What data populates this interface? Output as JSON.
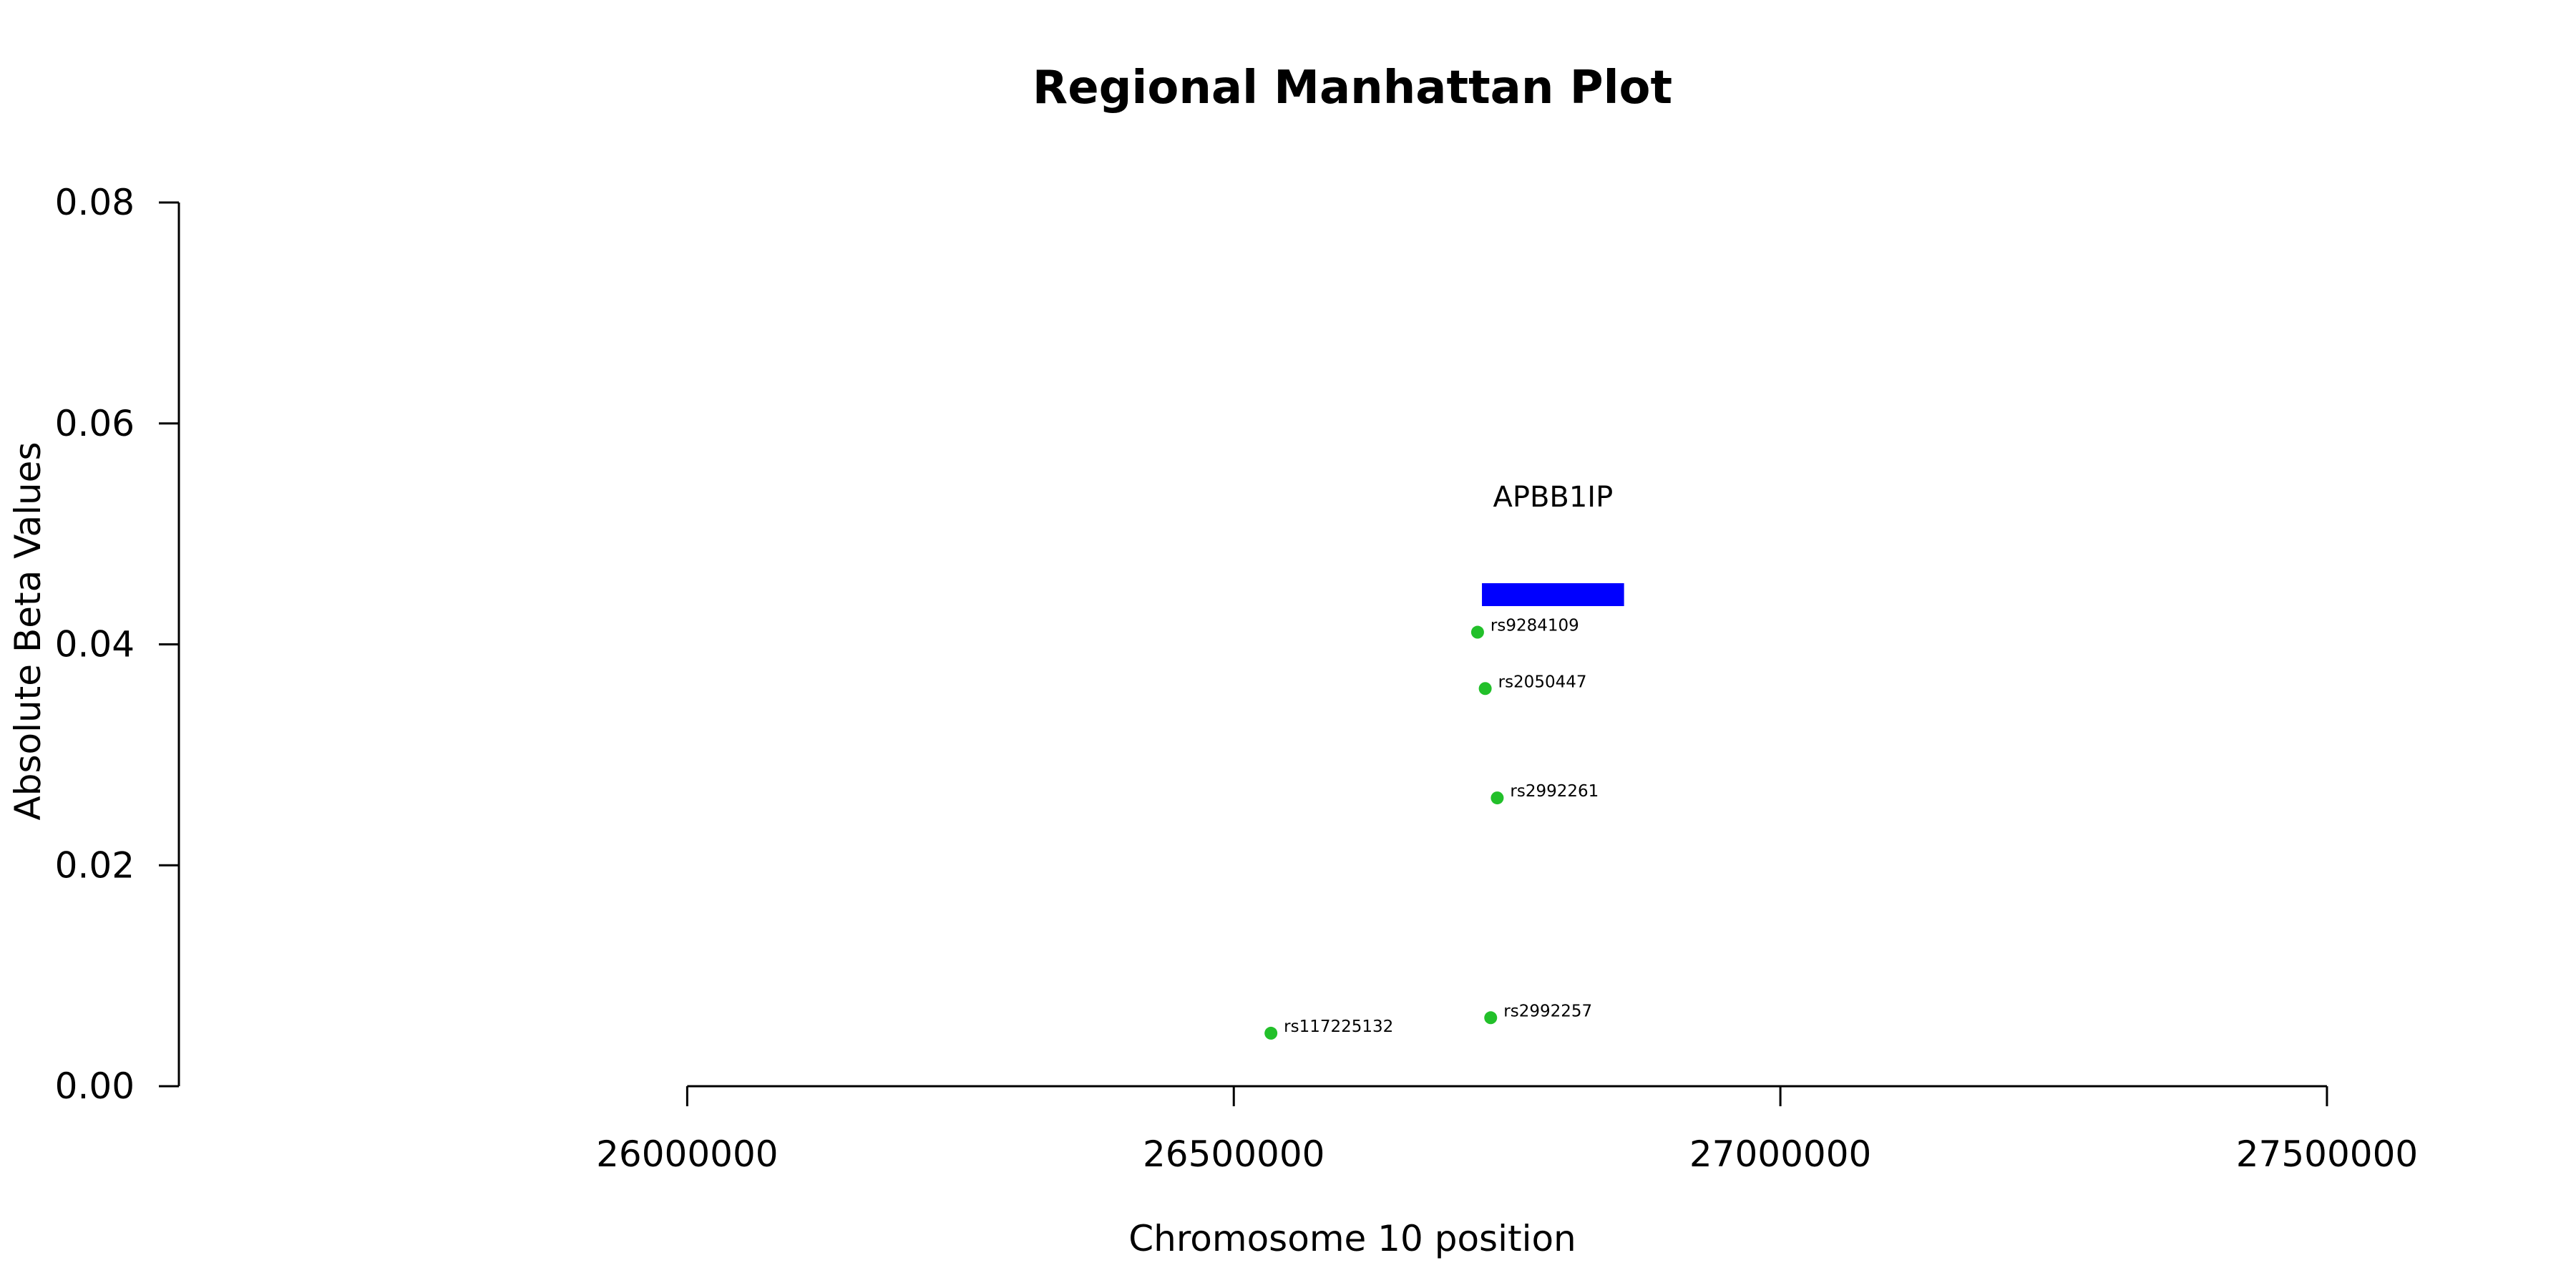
{
  "chart_data": {
    "type": "scatter",
    "title": "Regional Manhattan Plot",
    "xlabel": "Chromosome 10 position",
    "ylabel": "Absolute Beta Values",
    "xlim": [
      25535000,
      27682000
    ],
    "ylim": [
      0,
      0.08
    ],
    "x_ticks": [
      26000000,
      26500000,
      27000000,
      27500000
    ],
    "y_ticks": [
      0.0,
      0.02,
      0.04,
      0.06,
      0.08
    ],
    "y_tick_labels": [
      "0.00",
      "0.02",
      "0.04",
      "0.06",
      "0.08"
    ],
    "x_tick_labels": [
      "26000000",
      "26500000",
      "27000000",
      "27500000"
    ],
    "grid": false,
    "point_color": "#22C02A",
    "gene_color": "#0000FF",
    "points": [
      {
        "label": "rs9284109",
        "x": 26723000,
        "y": 0.0411
      },
      {
        "label": "rs2050447",
        "x": 26730000,
        "y": 0.036
      },
      {
        "label": "rs2992261",
        "x": 26741000,
        "y": 0.0261
      },
      {
        "label": "rs2992257",
        "x": 26735000,
        "y": 0.0062
      },
      {
        "label": "rs117225132",
        "x": 26534000,
        "y": 0.0048
      }
    ],
    "genes": [
      {
        "name": "APBB1IP",
        "start": 26727000,
        "end": 26857000,
        "y": 0.0445
      }
    ]
  }
}
